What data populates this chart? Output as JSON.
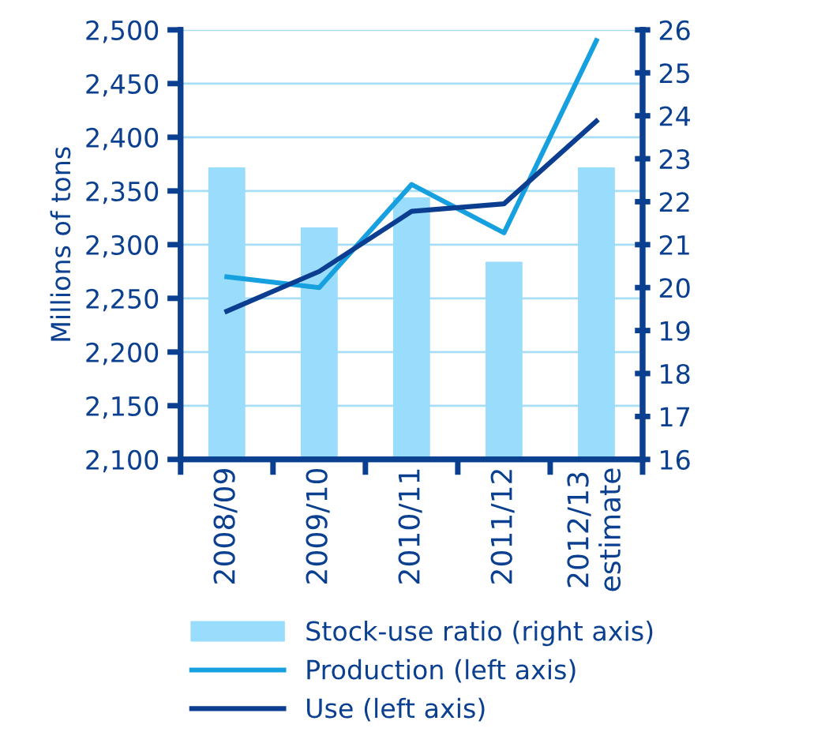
{
  "chart_data": {
    "type": "bar",
    "ylabel": "Millions of tons",
    "categories": [
      "2008/09",
      "2009/10",
      "2010/11",
      "2011/12",
      "2012/13\nestimate"
    ],
    "series": [
      {
        "name": "Stock-use ratio (right axis)",
        "axis": "y2",
        "color": "#99dcfc",
        "values": [
          22.8,
          21.4,
          22.1,
          20.6,
          22.8
        ]
      },
      {
        "name": "Production (left axis)",
        "type": "line",
        "color": "#16a0e0",
        "values": [
          2270,
          2260,
          2356,
          2311,
          2490
        ]
      },
      {
        "name": "Use (left axis)",
        "type": "line",
        "color": "#0b3d91",
        "values": [
          2238,
          2275,
          2331,
          2338,
          2415
        ]
      }
    ],
    "ylim": [
      2100,
      2500
    ],
    "yticks": [
      {
        "value": 2100,
        "label": "2,100"
      },
      {
        "value": 2150,
        "label": "2,150"
      },
      {
        "value": 2200,
        "label": "2,200"
      },
      {
        "value": 2250,
        "label": "2,250"
      },
      {
        "value": 2300,
        "label": "2,300"
      },
      {
        "value": 2350,
        "label": "2,350"
      },
      {
        "value": 2400,
        "label": "2,400"
      },
      {
        "value": 2450,
        "label": "2,450"
      },
      {
        "value": 2500,
        "label": "2,500"
      }
    ],
    "y2lim": [
      16,
      26
    ],
    "y2ticks": [
      16,
      17,
      18,
      19,
      20,
      21,
      22,
      23,
      24,
      25,
      26
    ],
    "grid": "y",
    "legend": "bottom",
    "marker": "none",
    "line_style": "solid"
  }
}
